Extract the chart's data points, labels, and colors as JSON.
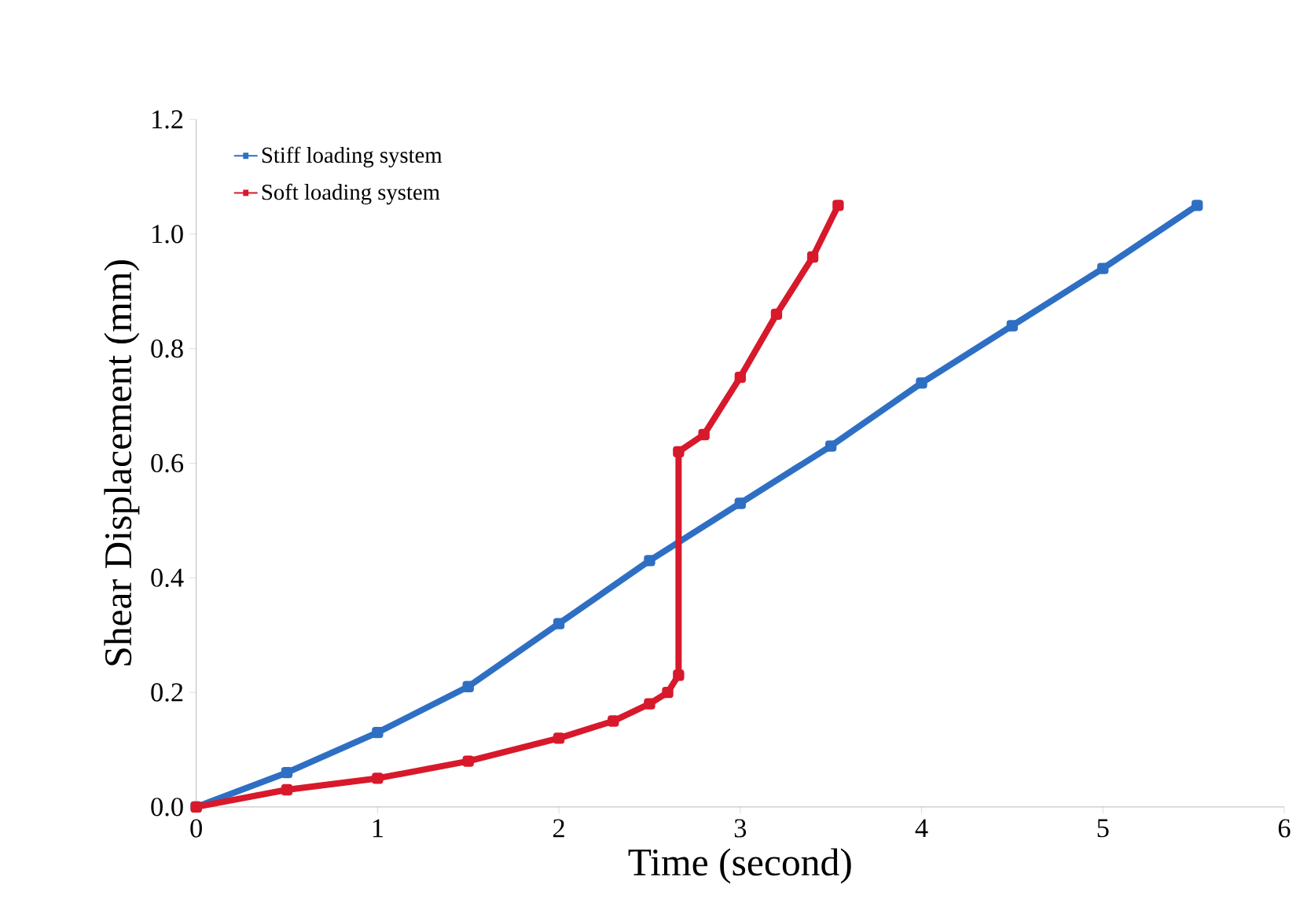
{
  "chart_data": {
    "type": "line",
    "xlabel": "Time (second)",
    "ylabel": "Shear Displacement (mm)",
    "xlim": [
      0,
      6
    ],
    "xticks": [
      0,
      1,
      2,
      3,
      4,
      5,
      6
    ],
    "ylim": [
      0,
      1.2
    ],
    "yticks": [
      {
        "value": 0,
        "label": "0.0"
      },
      0.2,
      0.4,
      0.6,
      0.8,
      {
        "value": 1,
        "label": "1.0"
      },
      1.2
    ],
    "grid": false,
    "legend": "top left",
    "marker": "square",
    "line_style": "solid",
    "series": [
      {
        "name": "Stiff loading system",
        "color": "#2e6fc4",
        "x": [
          0,
          0.5,
          1,
          1.5,
          2,
          2.5,
          3,
          3.5,
          4,
          4.5,
          5,
          5.52
        ],
        "values": [
          0,
          0.06,
          0.13,
          0.21,
          0.32,
          0.43,
          0.53,
          0.63,
          0.74,
          0.84,
          0.94,
          1.05
        ]
      },
      {
        "name": "Soft loading system",
        "color": "#d7192b",
        "x": [
          0,
          0.5,
          1,
          1.5,
          2,
          2.3,
          2.5,
          2.6,
          2.66,
          2.66,
          2.8,
          3,
          3.2,
          3.4,
          3.54
        ],
        "values": [
          0,
          0.03,
          0.05,
          0.08,
          0.12,
          0.15,
          0.18,
          0.2,
          0.23,
          0.62,
          0.65,
          0.75,
          0.86,
          0.96,
          1.05
        ]
      }
    ]
  }
}
